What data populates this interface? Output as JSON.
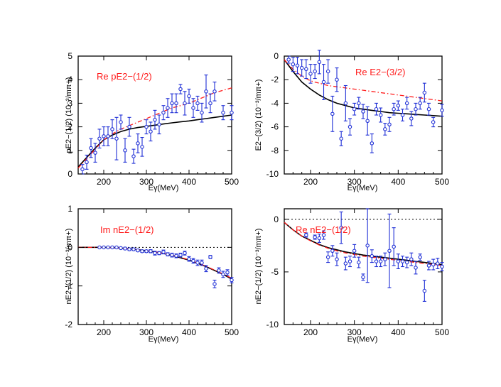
{
  "colors": {
    "data_points": "#1f2fd6",
    "model_solid": "#000000",
    "model_dashdot": "#ff1a1a",
    "title": "#ff1a1a"
  },
  "chart_data": [
    {
      "type": "scatter",
      "title": "Re pE2−(1/2)",
      "xlabel": "Eγ(MeV)",
      "ylabel": "pE2−(1/2)  (10⁻³/mπ+)",
      "xlim": [
        140,
        500
      ],
      "ylim": [
        0,
        5
      ],
      "xticks": [
        200,
        300,
        400,
        500
      ],
      "yticks": [
        0,
        1,
        2,
        3,
        4,
        5
      ],
      "x": [
        150,
        160,
        170,
        180,
        190,
        200,
        210,
        220,
        230,
        240,
        250,
        260,
        270,
        280,
        290,
        300,
        310,
        320,
        330,
        340,
        350,
        360,
        370,
        380,
        390,
        400,
        410,
        420,
        430,
        440,
        450,
        460,
        480,
        500
      ],
      "y": [
        0.2,
        0.5,
        1.1,
        0.9,
        1.5,
        1.6,
        1.6,
        1.9,
        1.5,
        2.2,
        1.0,
        2.0,
        0.75,
        1.3,
        1.15,
        2.0,
        1.8,
        2.3,
        2.1,
        2.6,
        2.8,
        3.0,
        3.0,
        3.6,
        3.0,
        3.3,
        2.8,
        3.0,
        2.6,
        3.5,
        3.0,
        3.5,
        2.6,
        2.6
      ],
      "yerr": [
        0.2,
        0.3,
        0.4,
        0.4,
        0.4,
        0.4,
        0.4,
        0.4,
        0.9,
        0.3,
        0.5,
        0.4,
        0.3,
        0.4,
        0.4,
        0.3,
        0.4,
        0.4,
        0.4,
        0.3,
        0.4,
        0.4,
        0.4,
        0.2,
        0.5,
        0.3,
        0.4,
        0.3,
        0.4,
        0.7,
        0.4,
        0.4,
        0.3,
        0.3
      ],
      "series": [
        {
          "style": "solid",
          "x": [
            140,
            160,
            180,
            200,
            220,
            240,
            260,
            280,
            300,
            320,
            340,
            360,
            380,
            400,
            420,
            440,
            460,
            480,
            500
          ],
          "y": [
            0.3,
            0.7,
            1.1,
            1.45,
            1.65,
            1.8,
            1.9,
            1.97,
            2.02,
            2.07,
            2.12,
            2.17,
            2.21,
            2.25,
            2.3,
            2.35,
            2.4,
            2.45,
            2.5
          ]
        },
        {
          "style": "dashdot",
          "x": [
            140,
            160,
            180,
            200,
            220,
            240,
            260,
            280,
            300,
            320,
            340,
            360,
            380,
            400,
            420,
            440,
            460,
            480,
            500
          ],
          "y": [
            0.25,
            0.65,
            1.05,
            1.45,
            1.7,
            1.9,
            2.05,
            2.2,
            2.35,
            2.5,
            2.65,
            2.8,
            2.9,
            3.0,
            3.15,
            3.3,
            3.45,
            3.55,
            3.65
          ]
        }
      ],
      "hline": null,
      "grid": false
    },
    {
      "type": "scatter",
      "title": "Re E2−(3/2)",
      "xlabel": "Eγ(MeV)",
      "ylabel": "E2−(3/2)  (10⁻³/mπ+)",
      "xlim": [
        140,
        500
      ],
      "ylim": [
        -10,
        0
      ],
      "xticks": [
        200,
        300,
        400,
        500
      ],
      "yticks": [
        0,
        -2,
        -4,
        -6,
        -8,
        -10
      ],
      "x": [
        150,
        160,
        170,
        180,
        190,
        200,
        210,
        220,
        230,
        240,
        250,
        260,
        270,
        280,
        290,
        300,
        310,
        320,
        330,
        340,
        350,
        360,
        370,
        380,
        390,
        400,
        410,
        420,
        430,
        440,
        450,
        460,
        470,
        480,
        500
      ],
      "y": [
        -0.3,
        -0.7,
        -0.8,
        -1.0,
        -1.1,
        -1.5,
        -1.3,
        -0.5,
        -2.2,
        -1.3,
        -4.9,
        -2.0,
        -7.0,
        -4.0,
        -6.0,
        -4.5,
        -4.0,
        -4.7,
        -5.5,
        -7.4,
        -4.5,
        -5.0,
        -6.2,
        -5.8,
        -4.5,
        -4.2,
        -5.0,
        -4.0,
        -5.3,
        -4.5,
        -4.0,
        -3.1,
        -4.5,
        -5.6,
        -4.6
      ],
      "yerr": [
        0.3,
        0.6,
        0.7,
        0.7,
        0.8,
        0.8,
        0.6,
        1.0,
        1.5,
        1.0,
        1.5,
        1.0,
        0.6,
        1.5,
        0.7,
        0.5,
        0.5,
        0.6,
        1.2,
        0.8,
        0.5,
        0.6,
        0.5,
        0.6,
        0.5,
        0.4,
        0.5,
        0.5,
        0.6,
        0.5,
        0.5,
        0.8,
        0.5,
        0.4,
        0.5
      ],
      "series": [
        {
          "style": "solid",
          "x": [
            140,
            160,
            180,
            200,
            220,
            240,
            260,
            280,
            300,
            320,
            340,
            360,
            380,
            400,
            420,
            440,
            460,
            480,
            500
          ],
          "y": [
            -0.3,
            -1.3,
            -2.2,
            -2.8,
            -3.3,
            -3.7,
            -4.0,
            -4.2,
            -4.4,
            -4.5,
            -4.6,
            -4.7,
            -4.8,
            -4.85,
            -4.9,
            -4.95,
            -5.0,
            -5.05,
            -5.1
          ]
        },
        {
          "style": "dashdot",
          "x": [
            140,
            160,
            180,
            200,
            220,
            240,
            260,
            280,
            300,
            320,
            340,
            360,
            380,
            400,
            420,
            440,
            460,
            480,
            500
          ],
          "y": [
            -0.3,
            -1.1,
            -1.7,
            -2.1,
            -2.3,
            -2.5,
            -2.6,
            -2.7,
            -2.8,
            -2.9,
            -3.0,
            -3.1,
            -3.2,
            -3.3,
            -3.4,
            -3.5,
            -3.6,
            -3.7,
            -3.8
          ]
        }
      ],
      "hline": null,
      "grid": false
    },
    {
      "type": "scatter",
      "title": "Im nE2−(1/2)",
      "xlabel": "Eγ(MeV)",
      "ylabel": "nE2−(1/2)  (10⁻³/mπ+)",
      "xlim": [
        140,
        500
      ],
      "ylim": [
        -2,
        1
      ],
      "xticks": [
        200,
        300,
        400,
        500
      ],
      "yticks": [
        1,
        0,
        -1,
        -2
      ],
      "x": [
        190,
        200,
        210,
        220,
        230,
        240,
        250,
        260,
        270,
        280,
        290,
        300,
        310,
        320,
        330,
        340,
        350,
        360,
        370,
        380,
        390,
        400,
        410,
        420,
        430,
        440,
        450,
        460,
        470,
        480,
        490,
        500
      ],
      "y": [
        0.0,
        0.0,
        0.0,
        0.0,
        0.0,
        -0.02,
        -0.03,
        -0.05,
        -0.05,
        -0.08,
        -0.1,
        -0.1,
        -0.1,
        -0.15,
        -0.15,
        -0.12,
        -0.18,
        -0.2,
        -0.22,
        -0.2,
        -0.15,
        -0.3,
        -0.35,
        -0.4,
        -0.4,
        -0.55,
        -0.25,
        -0.95,
        -0.6,
        -0.7,
        -0.65,
        -0.85
      ],
      "yerr": [
        0.01,
        0.01,
        0.02,
        0.02,
        0.02,
        0.02,
        0.03,
        0.03,
        0.03,
        0.03,
        0.03,
        0.03,
        0.04,
        0.05,
        0.04,
        0.05,
        0.04,
        0.05,
        0.05,
        0.05,
        0.05,
        0.06,
        0.06,
        0.07,
        0.07,
        0.08,
        0.04,
        0.1,
        0.07,
        0.08,
        0.07,
        0.07
      ],
      "series": [
        {
          "style": "solid",
          "x": [
            140,
            160,
            180,
            200,
            220,
            240,
            260,
            280,
            300,
            320,
            340,
            360,
            380,
            400,
            420,
            440,
            460,
            480,
            500
          ],
          "y": [
            0.0,
            0.0,
            0.0,
            0.0,
            -0.01,
            -0.02,
            -0.04,
            -0.06,
            -0.09,
            -0.12,
            -0.16,
            -0.21,
            -0.27,
            -0.33,
            -0.41,
            -0.5,
            -0.6,
            -0.7,
            -0.82
          ]
        },
        {
          "style": "dashdot",
          "x": [
            140,
            160,
            180,
            200,
            220,
            240,
            260,
            280,
            300,
            320,
            340,
            360,
            380,
            400,
            420,
            440,
            460,
            480,
            500
          ],
          "y": [
            0.0,
            0.0,
            0.0,
            0.0,
            -0.01,
            -0.02,
            -0.035,
            -0.055,
            -0.085,
            -0.115,
            -0.155,
            -0.2,
            -0.26,
            -0.32,
            -0.4,
            -0.49,
            -0.59,
            -0.69,
            -0.8
          ]
        }
      ],
      "hline": 0,
      "grid": false
    },
    {
      "type": "scatter",
      "title": "Re nE2−(1/2)",
      "xlabel": "Eγ(MeV)",
      "ylabel": "nE2−(1/2)  (10⁻³/mπ+)",
      "xlim": [
        140,
        500
      ],
      "ylim": [
        -10,
        1
      ],
      "xticks": [
        200,
        300,
        400,
        500
      ],
      "yticks": [
        0,
        -5,
        -10
      ],
      "x": [
        190,
        210,
        220,
        230,
        240,
        250,
        260,
        270,
        280,
        290,
        300,
        310,
        320,
        330,
        340,
        350,
        360,
        370,
        380,
        390,
        400,
        410,
        420,
        430,
        440,
        450,
        460,
        470,
        480,
        490,
        500
      ],
      "y": [
        -1.5,
        -1.7,
        -1.8,
        -1.5,
        -3.6,
        -3.0,
        -3.8,
        -0.8,
        -4.2,
        -4.0,
        -3.0,
        -4.1,
        -5.5,
        -2.5,
        -3.5,
        -4.0,
        -4.0,
        -3.8,
        -3.0,
        -2.6,
        -4.0,
        -4.0,
        -4.1,
        -3.8,
        -4.6,
        -3.6,
        -6.8,
        -4.4,
        -4.3,
        -4.2,
        -4.5
      ],
      "yerr": [
        0.2,
        0.2,
        0.4,
        0.4,
        0.5,
        0.5,
        0.6,
        1.5,
        0.6,
        0.5,
        0.6,
        0.5,
        0.3,
        3.5,
        0.6,
        0.5,
        0.5,
        0.6,
        3.5,
        1.8,
        0.7,
        0.5,
        0.5,
        0.6,
        0.6,
        0.3,
        1.0,
        0.4,
        0.5,
        0.5,
        0.4
      ],
      "series": [
        {
          "style": "solid",
          "x": [
            140,
            160,
            180,
            200,
            220,
            240,
            260,
            280,
            300,
            320,
            340,
            360,
            380,
            400,
            420,
            440,
            460,
            480,
            500
          ],
          "y": [
            -0.3,
            -1.0,
            -1.6,
            -2.0,
            -2.4,
            -2.7,
            -2.9,
            -3.1,
            -3.25,
            -3.4,
            -3.5,
            -3.6,
            -3.7,
            -3.8,
            -3.9,
            -4.0,
            -4.1,
            -4.2,
            -4.3
          ]
        },
        {
          "style": "dashdot",
          "x": [
            140,
            160,
            180,
            200,
            220,
            240,
            260,
            280,
            300,
            320,
            340,
            360,
            380,
            400,
            420,
            440,
            460,
            480,
            500
          ],
          "y": [
            -0.3,
            -1.0,
            -1.6,
            -2.05,
            -2.45,
            -2.75,
            -3.0,
            -3.2,
            -3.35,
            -3.5,
            -3.6,
            -3.7,
            -3.8,
            -3.9,
            -4.0,
            -4.1,
            -4.2,
            -4.3,
            -4.4
          ]
        }
      ],
      "hline": 0,
      "grid": false
    }
  ]
}
